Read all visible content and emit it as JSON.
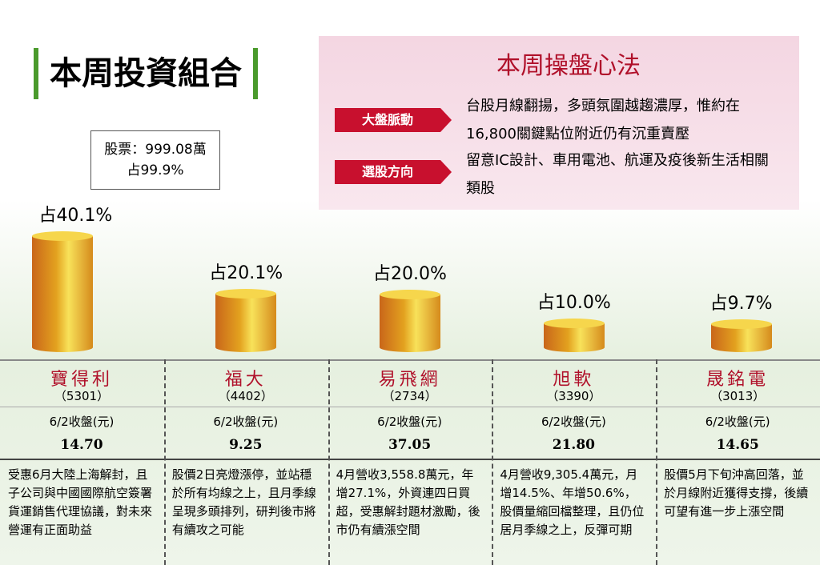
{
  "header": {
    "title": "本周投資組合"
  },
  "summary": {
    "line1": "股票：999.08萬",
    "line2": "占99.9%"
  },
  "strategy": {
    "title": "本周操盤心法",
    "items": [
      {
        "label": "大盤脈動",
        "text": "台股月線翻揚，多頭氛圍越趨濃厚，惟約在16,800關鍵點位附近仍有沉重賣壓"
      },
      {
        "label": "選股方向",
        "text": "留意IC設計、車用電池、航運及疫後新生活相關類股"
      }
    ]
  },
  "chart_data": {
    "type": "bar",
    "color": "#e3a21f",
    "categories": [
      "寶得利",
      "福大",
      "易飛網",
      "旭軟",
      "晟銘電"
    ],
    "values": [
      40.1,
      20.1,
      20.0,
      10.0,
      9.7
    ],
    "value_labels": [
      "占40.1%",
      "占20.1%",
      "占20.0%",
      "占10.0%",
      "占9.7%"
    ],
    "codes": [
      "（5301）",
      "（4402）",
      "（2734）",
      "（3390）",
      "（3013）"
    ],
    "price_label": "6/2收盤(元)",
    "prices": [
      "14.70",
      "9.25",
      "37.05",
      "21.80",
      "14.65"
    ],
    "notes": [
      "受惠6月大陸上海解封，且子公司與中國國際航空簽署貨運銷售代理協議，對未來營運有正面助益",
      "股價2日亮燈漲停，並站穩於所有均線之上，且月季線呈現多頭排列，研判後市將有續攻之可能",
      "4月營收3,558.8萬元，年增27.1%，外資連四日買超，受惠解封題材激勵，後市仍有續漲空間",
      "4月營收9,305.4萬元，月增14.5%、年增50.6%，股價量縮回檔整理，且仍位居月季線之上，反彈可期",
      "股價5月下旬沖高回落，並於月線附近獲得支撐，後續可望有進一步上漲空間"
    ]
  }
}
